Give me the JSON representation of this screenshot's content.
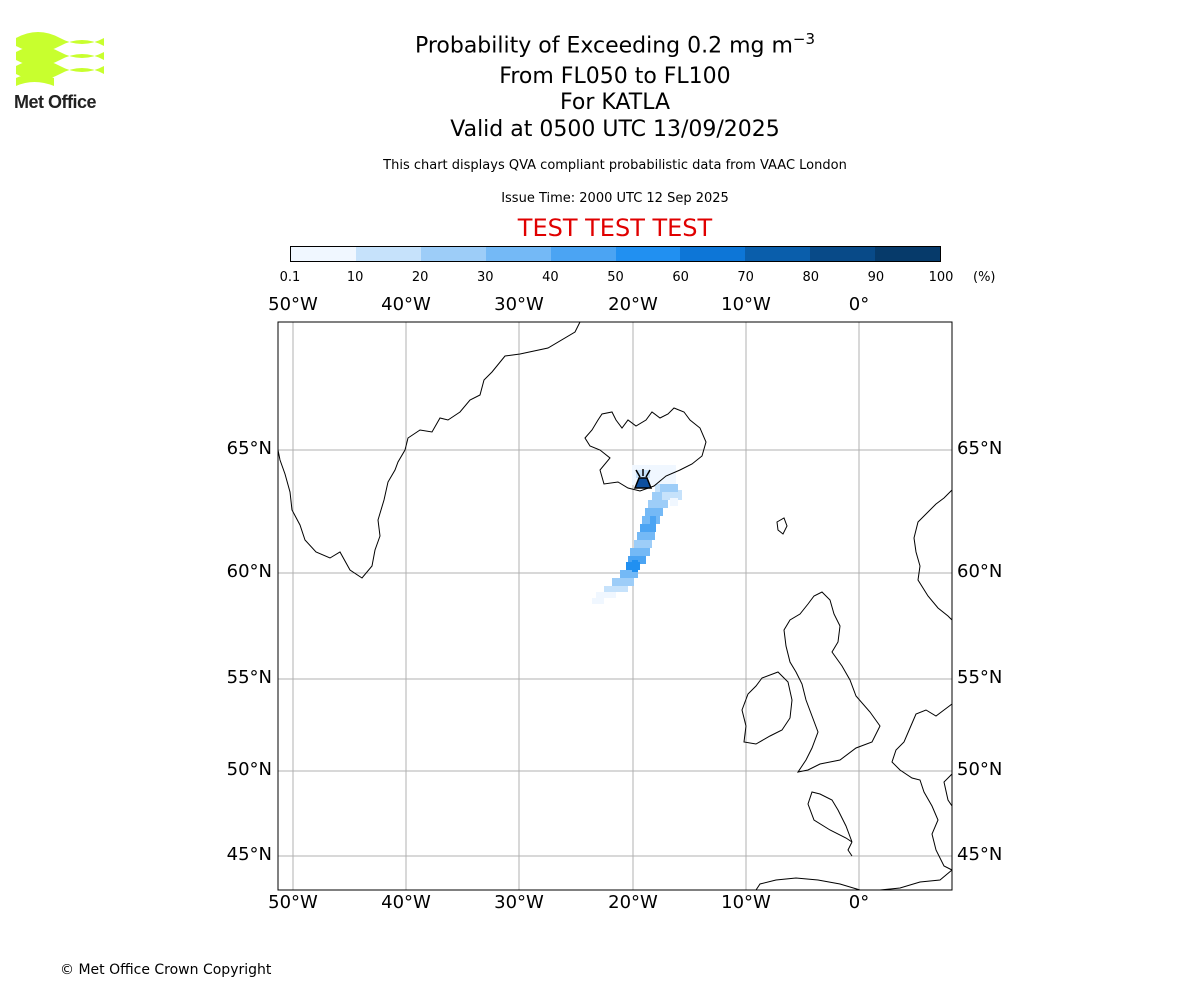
{
  "header": {
    "logo_text": "Met Office",
    "title_main": "Probability of Exceeding 0.2 mg m",
    "title_exp": "−3",
    "levels": "From FL050 to FL100",
    "volcano": "For KATLA",
    "valid": "Valid at 0500 UTC 13/09/2025",
    "description": "This chart displays QVA compliant probabilistic data from VAAC London",
    "issue_time": "Issue Time: 2000 UTC 12 Sep 2025",
    "test_banner": "TEST TEST TEST"
  },
  "colorbar": {
    "ticks": [
      "0.1",
      "10",
      "20",
      "30",
      "40",
      "50",
      "60",
      "70",
      "80",
      "90",
      "100"
    ],
    "unit": "(%)",
    "colors": [
      "#f0f7ff",
      "#c6e2fb",
      "#9dcdf8",
      "#74b9f6",
      "#4ba4f3",
      "#2190f1",
      "#0d76d7",
      "#0a5eab",
      "#084a88",
      "#063a6a",
      "#052c52"
    ]
  },
  "map": {
    "lon_labels": [
      "50°W",
      "40°W",
      "30°W",
      "20°W",
      "10°W",
      "0°"
    ],
    "lat_labels": [
      "65°N",
      "60°N",
      "55°N",
      "50°N",
      "45°N"
    ],
    "coast_color": "#000000",
    "grid_color": "#b0b0b0",
    "volcano_marker": "volcano-icon"
  },
  "footer": {
    "copyright": "© Met Office Crown Copyright"
  }
}
